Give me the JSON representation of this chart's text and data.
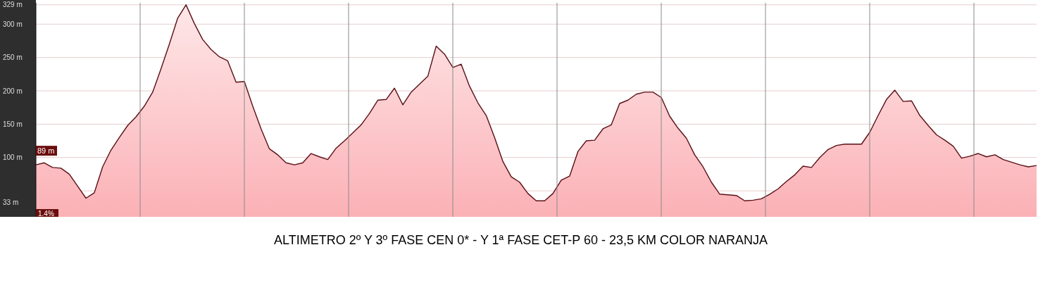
{
  "chart_data": {
    "type": "area",
    "title": "ALTIMETRO 2º Y 3º FASE  CEN 0* - Y 1ª FASE CET-P 60 - 23,5 KM COLOR NARANJA",
    "categories": [
      null,
      null,
      null,
      null,
      null,
      null,
      null,
      null,
      null,
      null,
      null,
      null,
      null,
      null,
      null,
      null,
      null,
      null,
      null,
      null,
      null,
      null,
      null,
      null,
      null,
      null,
      null,
      null,
      null,
      null,
      null,
      null,
      null,
      null,
      null,
      null,
      null,
      null,
      null,
      null,
      null,
      null,
      null,
      null,
      null,
      null,
      null,
      null,
      null,
      null,
      null,
      null,
      null,
      null,
      null,
      null,
      null,
      null,
      null,
      null,
      null,
      null,
      null,
      null,
      null,
      null,
      null,
      null,
      null,
      null,
      null,
      null,
      null,
      null,
      null,
      null,
      null,
      null,
      null,
      null,
      null,
      null,
      null,
      null,
      null,
      null,
      null,
      null,
      null,
      null,
      null,
      null,
      null,
      null,
      null,
      null,
      null,
      null,
      null,
      null,
      null,
      null,
      null,
      null,
      null,
      null,
      null,
      null,
      null,
      null,
      null,
      null,
      null,
      null,
      null,
      null,
      null,
      null,
      null,
      null,
      null
    ],
    "series": [
      {
        "color": "#5a0f14",
        "values": [
          89,
          92,
          85,
          84,
          75,
          57,
          39,
          47,
          86,
          111,
          130,
          148,
          161,
          177,
          198,
          233,
          270,
          309,
          329,
          301,
          277,
          262,
          251,
          245,
          213,
          214,
          177,
          143,
          113,
          104,
          92,
          89,
          92,
          106,
          101,
          97,
          114,
          125,
          137,
          149,
          166,
          186,
          187,
          204,
          179,
          198,
          210,
          222,
          267,
          255,
          235,
          240,
          207,
          182,
          163,
          130,
          94,
          71,
          63,
          46,
          35,
          35,
          46,
          66,
          72,
          109,
          125,
          126,
          143,
          149,
          181,
          186,
          195,
          198,
          198,
          190,
          162,
          144,
          129,
          104,
          86,
          63,
          45,
          44,
          43,
          35,
          36,
          38,
          45,
          53,
          64,
          74,
          87,
          85,
          100,
          112,
          118,
          120,
          120,
          120,
          138,
          163,
          187,
          201,
          184,
          185,
          163,
          148,
          134,
          126,
          117,
          99,
          102,
          106,
          101,
          104,
          97,
          93,
          89,
          86,
          88
        ]
      }
    ],
    "ylim": [
      11,
      332
    ],
    "yticks": [
      {
        "value": 329,
        "label": "329 m"
      },
      {
        "value": 300,
        "label": "300 m"
      },
      {
        "value": 250,
        "label": "250 m"
      },
      {
        "value": 200,
        "label": "200 m"
      },
      {
        "value": 150,
        "label": "150 m"
      },
      {
        "value": 100,
        "label": "100 m"
      },
      {
        "value": 50,
        "label": null
      },
      {
        "value": 33,
        "label": "33 m"
      }
    ],
    "grid": true,
    "annotations": [
      {
        "text": "89 m",
        "y": 89
      },
      "1.4%"
    ]
  }
}
